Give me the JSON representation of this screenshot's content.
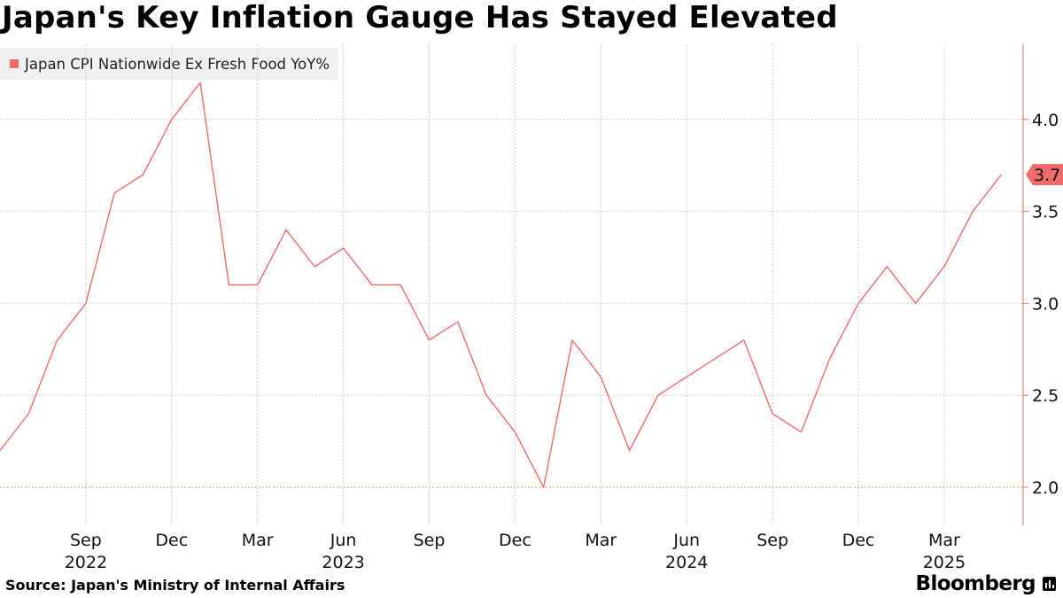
{
  "title": "Japan's Key Inflation Gauge Has Stayed Elevated",
  "legend": {
    "label": "Japan CPI Nationwide Ex Fresh Food YoY%"
  },
  "source": "Source: Japan's Ministry of Internal Affairs",
  "brand": "Bloomberg",
  "brand_icon": "bloomberg-terminal-icon",
  "colors": {
    "series": "#f26b6b",
    "reference_line": "#c9a23a",
    "grid": "#cccccc"
  },
  "chart_data": {
    "type": "line",
    "title": "Japan's Key Inflation Gauge Has Stayed Elevated",
    "xlabel": "",
    "ylabel": "",
    "ylim": [
      1.8,
      4.45
    ],
    "y_ticks": [
      2.0,
      2.5,
      3.0,
      3.5,
      4.0
    ],
    "y_tick_labels": [
      "2.0",
      "2.5",
      "3.0",
      "3.5",
      "4.0"
    ],
    "grid": true,
    "reference_line": 2.0,
    "x_ticks": [
      {
        "index": 3,
        "month": "Sep",
        "year": "2022"
      },
      {
        "index": 6,
        "month": "Dec",
        "year": ""
      },
      {
        "index": 9,
        "month": "Mar",
        "year": ""
      },
      {
        "index": 12,
        "month": "Jun",
        "year": "2023"
      },
      {
        "index": 15,
        "month": "Sep",
        "year": ""
      },
      {
        "index": 18,
        "month": "Dec",
        "year": ""
      },
      {
        "index": 21,
        "month": "Mar",
        "year": ""
      },
      {
        "index": 24,
        "month": "Jun",
        "year": "2024"
      },
      {
        "index": 27,
        "month": "Sep",
        "year": ""
      },
      {
        "index": 30,
        "month": "Dec",
        "year": ""
      },
      {
        "index": 33,
        "month": "Mar",
        "year": "2025"
      }
    ],
    "series": [
      {
        "name": "Japan CPI Nationwide Ex Fresh Food YoY%",
        "x": [
          "Jun 2022",
          "Jul 2022",
          "Aug 2022",
          "Sep 2022",
          "Oct 2022",
          "Nov 2022",
          "Dec 2022",
          "Jan 2023",
          "Feb 2023",
          "Mar 2023",
          "Apr 2023",
          "May 2023",
          "Jun 2023",
          "Jul 2023",
          "Aug 2023",
          "Sep 2023",
          "Oct 2023",
          "Nov 2023",
          "Dec 2023",
          "Jan 2024",
          "Feb 2024",
          "Mar 2024",
          "Apr 2024",
          "May 2024",
          "Jun 2024",
          "Jul 2024",
          "Aug 2024",
          "Sep 2024",
          "Oct 2024",
          "Nov 2024",
          "Dec 2024",
          "Jan 2025",
          "Feb 2025",
          "Mar 2025",
          "Apr 2025",
          "May 2025"
        ],
        "values": [
          2.2,
          2.4,
          2.8,
          3.0,
          3.6,
          3.7,
          4.0,
          4.2,
          3.1,
          3.1,
          3.4,
          3.2,
          3.3,
          3.1,
          3.1,
          2.8,
          2.9,
          2.5,
          2.3,
          2.0,
          2.8,
          2.6,
          2.2,
          2.5,
          2.6,
          2.7,
          2.8,
          2.4,
          2.3,
          2.7,
          3.0,
          3.2,
          3.0,
          3.2,
          3.5,
          3.7
        ],
        "last_value_label": "3.7"
      }
    ]
  }
}
